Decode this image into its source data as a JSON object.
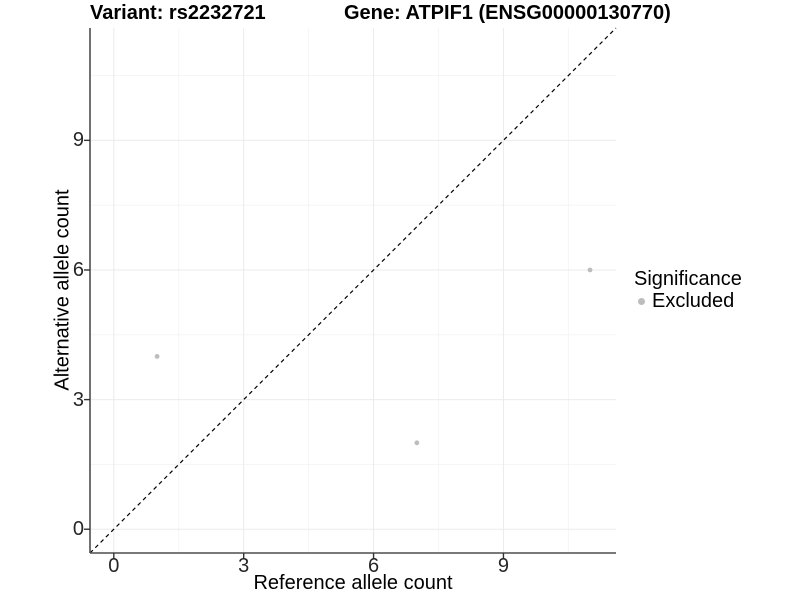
{
  "header": {
    "variant_title": "Variant: rs2232721",
    "gene_title": "Gene: ATPIF1 (ENSG00000130770)"
  },
  "chart_data": {
    "type": "scatter",
    "titles": [
      "Variant: rs2232721",
      "Gene: ATPIF1 (ENSG00000130770)"
    ],
    "xlabel": "Reference allele count",
    "ylabel": "Alternative allele count",
    "xlim": [
      -0.55,
      11.6
    ],
    "ylim": [
      -0.55,
      11.6
    ],
    "xticks": [
      0,
      3,
      6,
      9
    ],
    "yticks": [
      0,
      3,
      6,
      9
    ],
    "x_minor_ticks": [
      1.5,
      4.5,
      7.5,
      10.5
    ],
    "y_minor_ticks": [
      1.5,
      4.5,
      7.5,
      10.5
    ],
    "grid": true,
    "identity_line": {
      "equation": "y = x",
      "style": "dashed",
      "color": "#000000"
    },
    "series": [
      {
        "name": "Excluded",
        "color": "#bdbdbd",
        "marker": "circle",
        "points": [
          [
            1,
            4
          ],
          [
            7,
            2
          ],
          [
            11,
            6
          ]
        ]
      }
    ],
    "legend": {
      "title": "Significance",
      "position": "right",
      "items": [
        {
          "label": "Excluded",
          "color": "#bdbdbd"
        }
      ]
    },
    "style": {
      "axis_line_color": "#4d4d4d",
      "tick_color": "#333333",
      "grid_major_color": "#ebebeb",
      "grid_minor_color": "#f4f4f4",
      "background": "#ffffff"
    }
  }
}
